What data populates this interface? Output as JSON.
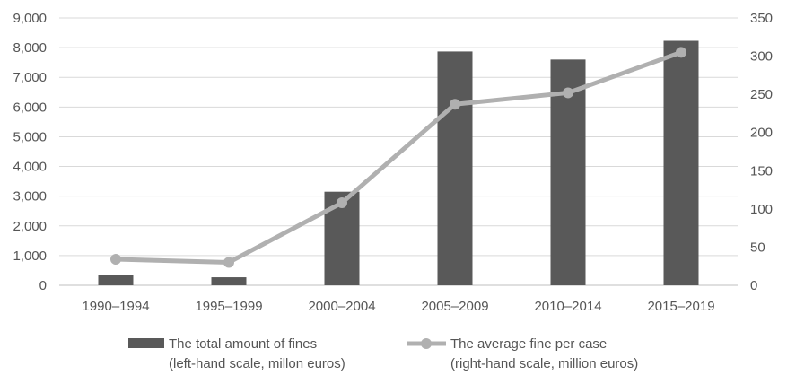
{
  "chart_data": {
    "type": "bar",
    "categories": [
      "1990–1994",
      "1995–1999",
      "2000–2004",
      "2005–2009",
      "2010–2014",
      "2015–2019"
    ],
    "series": [
      {
        "type": "bar",
        "axis": "left",
        "legend_lines": [
          "The total amount of fines",
          "(left-hand scale, millon euros)"
        ],
        "values": [
          340,
          270,
          3150,
          7870,
          7600,
          8230
        ],
        "color": "#595959"
      },
      {
        "type": "line",
        "axis": "right",
        "legend_lines": [
          "The average fine per case",
          "(right-hand scale, million euros)"
        ],
        "values": [
          34,
          30,
          108,
          237,
          252,
          305
        ],
        "color": "#b0b0b0"
      }
    ],
    "y_left": {
      "min": 0,
      "max": 9000,
      "ticks": [
        0,
        1000,
        2000,
        3000,
        4000,
        5000,
        6000,
        7000,
        8000,
        9000
      ],
      "tick_labels": [
        "0",
        "1,000",
        "2,000",
        "3,000",
        "4,000",
        "5,000",
        "6,000",
        "7,000",
        "8,000",
        "9,000"
      ]
    },
    "y_right": {
      "min": 0,
      "max": 350,
      "ticks": [
        0,
        50,
        100,
        150,
        200,
        250,
        300,
        350
      ],
      "tick_labels": [
        "0",
        "50",
        "100",
        "150",
        "200",
        "250",
        "300",
        "350"
      ]
    },
    "grid": true,
    "legend_position": "bottom",
    "title": "",
    "xlabel": "",
    "ylabel": ""
  }
}
